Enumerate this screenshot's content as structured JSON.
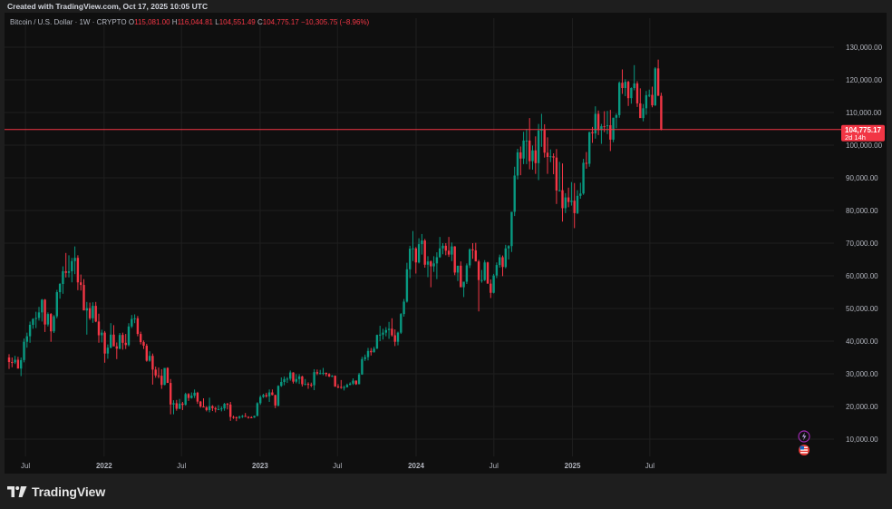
{
  "header": {
    "created": "Created with TradingView.com, Oct 17, 2025 10:05 UTC"
  },
  "legend": {
    "symbol": "Bitcoin / U.S. Dollar · 1W · CRYPTO",
    "o_label": "O",
    "o": "115,081.00",
    "h_label": "H",
    "h": "116,044.81",
    "l_label": "L",
    "l": "104,551.49",
    "c_label": "C",
    "c": "104,775.17",
    "chg": "−10,305.75 (−8.96%)"
  },
  "price_tag": {
    "value": "104,775.17",
    "countdown": "2d 14h"
  },
  "footer": {
    "brand": "TradingView"
  },
  "colors": {
    "up": "#089981",
    "down": "#f23645",
    "bg": "#0f0f0f",
    "grid": "#1f1f1f",
    "axis_text": "#b2b5be"
  },
  "icons": [
    "lightning-icon",
    "us-flag-icon"
  ],
  "chart_data": {
    "type": "candlestick",
    "title": "Bitcoin / U.S. Dollar · 1W · CRYPTO",
    "ylim": [
      3000,
      137000
    ],
    "y_ticks": [
      "10,000.00",
      "20,000.00",
      "30,000.00",
      "40,000.00",
      "50,000.00",
      "60,000.00",
      "70,000.00",
      "80,000.00",
      "90,000.00",
      "100,000.00",
      "110,000.00",
      "120,000.00",
      "130,000.00"
    ],
    "x_ticks": [
      "Jul",
      "2022",
      "Jul",
      "2023",
      "Jul",
      "2024",
      "Jul",
      "2025",
      "Jul"
    ],
    "x_tick_dates": [
      "2021-07-01",
      "2022-01-01",
      "2022-07-01",
      "2023-01-01",
      "2023-07-01",
      "2024-01-01",
      "2024-07-01",
      "2025-01-01",
      "2025-07-01"
    ],
    "current_price": 104775.17,
    "weeks_ohlc": [
      [
        35000,
        36000,
        31500,
        33600
      ],
      [
        33600,
        35000,
        32000,
        33500
      ],
      [
        33500,
        35500,
        33000,
        34300
      ],
      [
        34300,
        35200,
        31800,
        31600
      ],
      [
        31600,
        35000,
        29300,
        34200
      ],
      [
        34200,
        40800,
        33500,
        39800
      ],
      [
        39800,
        42600,
        38000,
        41500
      ],
      [
        41500,
        46000,
        39500,
        45000
      ],
      [
        45000,
        47000,
        43800,
        46800
      ],
      [
        46800,
        49000,
        44000,
        47100
      ],
      [
        47100,
        50500,
        46300,
        48800
      ],
      [
        48800,
        52900,
        46000,
        52700
      ],
      [
        52700,
        52900,
        42800,
        45100
      ],
      [
        45100,
        48800,
        44500,
        48300
      ],
      [
        48300,
        48600,
        39800,
        43000
      ],
      [
        43000,
        48000,
        42500,
        47600
      ],
      [
        47600,
        55700,
        47000,
        55000
      ],
      [
        55000,
        57800,
        53000,
        57500
      ],
      [
        57500,
        62900,
        54500,
        61400
      ],
      [
        61400,
        67000,
        59500,
        60900
      ],
      [
        60900,
        66300,
        59500,
        61400
      ],
      [
        61400,
        65500,
        58000,
        64500
      ],
      [
        64500,
        69000,
        60500,
        65500
      ],
      [
        65500,
        66300,
        55600,
        58000
      ],
      [
        58000,
        60400,
        55500,
        57200
      ],
      [
        57200,
        59000,
        53500,
        49400
      ],
      [
        49400,
        52000,
        42000,
        50100
      ],
      [
        50100,
        51800,
        46500,
        47000
      ],
      [
        47000,
        51900,
        45600,
        50800
      ],
      [
        50800,
        52000,
        45800,
        46000
      ],
      [
        46000,
        48400,
        39500,
        41800
      ],
      [
        41800,
        43500,
        39600,
        42600
      ],
      [
        42600,
        43100,
        33400,
        36200
      ],
      [
        36200,
        39000,
        34600,
        38000
      ],
      [
        38000,
        45500,
        37800,
        42000
      ],
      [
        42000,
        44900,
        39500,
        38400
      ],
      [
        38400,
        39600,
        34500,
        37700
      ],
      [
        37700,
        42500,
        37500,
        41900
      ],
      [
        41900,
        42600,
        37400,
        39500
      ],
      [
        39500,
        42200,
        37600,
        38800
      ],
      [
        38800,
        45500,
        38400,
        44500
      ],
      [
        44500,
        48000,
        44000,
        46800
      ],
      [
        46800,
        48200,
        45500,
        47000
      ],
      [
        47000,
        47700,
        41500,
        42200
      ],
      [
        42200,
        42900,
        39000,
        39700
      ],
      [
        39700,
        40200,
        37600,
        38600
      ],
      [
        38600,
        39200,
        33700,
        34000
      ],
      [
        34000,
        36900,
        33700,
        35500
      ],
      [
        35500,
        36200,
        26700,
        31300
      ],
      [
        31300,
        32200,
        28800,
        29500
      ],
      [
        29500,
        31900,
        28600,
        29400
      ],
      [
        29400,
        31400,
        25400,
        26600
      ],
      [
        26600,
        31500,
        26500,
        31800
      ],
      [
        31800,
        32000,
        28000,
        27200
      ],
      [
        27200,
        28400,
        17600,
        20600
      ],
      [
        20600,
        21900,
        17600,
        21000
      ],
      [
        21000,
        22000,
        18700,
        19300
      ],
      [
        19300,
        22300,
        19200,
        20900
      ],
      [
        20900,
        21400,
        18900,
        20500
      ],
      [
        20500,
        24200,
        20300,
        23800
      ],
      [
        23800,
        24100,
        21700,
        22600
      ],
      [
        22600,
        24300,
        22400,
        23300
      ],
      [
        23300,
        25200,
        22600,
        24200
      ],
      [
        24200,
        24500,
        20800,
        21500
      ],
      [
        21500,
        21700,
        19600,
        20000
      ],
      [
        20000,
        22500,
        19900,
        19700
      ],
      [
        19700,
        20100,
        18500,
        18900
      ],
      [
        18900,
        22700,
        18200,
        20100
      ],
      [
        20100,
        20400,
        18600,
        19500
      ],
      [
        19500,
        19900,
        18200,
        19100
      ],
      [
        19100,
        20400,
        18900,
        19200
      ],
      [
        19200,
        20000,
        18500,
        19400
      ],
      [
        19400,
        21100,
        18700,
        20800
      ],
      [
        20800,
        21100,
        19100,
        20600
      ],
      [
        20600,
        21400,
        15600,
        16800
      ],
      [
        16800,
        17200,
        16200,
        16700
      ],
      [
        16700,
        16900,
        15500,
        16500
      ],
      [
        16500,
        17200,
        16200,
        16900
      ],
      [
        16900,
        17400,
        16500,
        17100
      ],
      [
        17100,
        18000,
        16800,
        16800
      ],
      [
        16800,
        17000,
        16300,
        16700
      ],
      [
        16700,
        17000,
        16400,
        16600
      ],
      [
        16600,
        17200,
        16500,
        17100
      ],
      [
        17100,
        21300,
        17000,
        21000
      ],
      [
        21000,
        23400,
        20500,
        22900
      ],
      [
        22900,
        23900,
        22600,
        23500
      ],
      [
        23500,
        24200,
        22700,
        23100
      ],
      [
        23100,
        25200,
        21400,
        24300
      ],
      [
        24300,
        25200,
        23400,
        23500
      ],
      [
        23500,
        23600,
        19500,
        20300
      ],
      [
        20300,
        26500,
        20000,
        26300
      ],
      [
        26300,
        28900,
        26000,
        27500
      ],
      [
        27500,
        29200,
        26500,
        28400
      ],
      [
        28400,
        29000,
        27200,
        28500
      ],
      [
        28500,
        31000,
        27900,
        30400
      ],
      [
        30400,
        30500,
        27000,
        27600
      ],
      [
        27600,
        29900,
        27100,
        28400
      ],
      [
        28400,
        29900,
        26900,
        29200
      ],
      [
        29200,
        29400,
        26100,
        26800
      ],
      [
        26800,
        28400,
        26500,
        26900
      ],
      [
        26900,
        27400,
        25400,
        26700
      ],
      [
        26700,
        27300,
        25900,
        26500
      ],
      [
        26500,
        31400,
        25000,
        30500
      ],
      [
        30500,
        31300,
        29600,
        30100
      ],
      [
        30100,
        31200,
        29800,
        30200
      ],
      [
        30200,
        31800,
        29600,
        30300
      ],
      [
        30300,
        30400,
        29200,
        29900
      ],
      [
        29900,
        30200,
        29000,
        29200
      ],
      [
        29200,
        29600,
        29000,
        29400
      ],
      [
        29400,
        29500,
        26000,
        26100
      ],
      [
        26100,
        26800,
        25600,
        26000
      ],
      [
        26000,
        28100,
        25400,
        25800
      ],
      [
        25800,
        26400,
        24900,
        25900
      ],
      [
        25900,
        27000,
        25800,
        26600
      ],
      [
        26600,
        27400,
        26500,
        27000
      ],
      [
        27000,
        28600,
        26600,
        27900
      ],
      [
        27900,
        28000,
        26600,
        26800
      ],
      [
        26800,
        30300,
        26800,
        29800
      ],
      [
        29800,
        35200,
        29700,
        34500
      ],
      [
        34500,
        35900,
        33900,
        35100
      ],
      [
        35100,
        37900,
        34100,
        37000
      ],
      [
        37000,
        37900,
        35600,
        36600
      ],
      [
        36600,
        38300,
        36500,
        37700
      ],
      [
        37700,
        42000,
        37600,
        41900
      ],
      [
        41900,
        44700,
        40000,
        42000
      ],
      [
        42000,
        43800,
        40500,
        42600
      ],
      [
        42600,
        44300,
        41500,
        43400
      ],
      [
        43400,
        45900,
        40700,
        43800
      ],
      [
        43800,
        47000,
        41400,
        41800
      ],
      [
        41800,
        43600,
        38500,
        39800
      ],
      [
        39800,
        42900,
        38700,
        42600
      ],
      [
        42600,
        48600,
        42200,
        48300
      ],
      [
        48300,
        52900,
        47500,
        52100
      ],
      [
        52100,
        64000,
        51800,
        62000
      ],
      [
        62000,
        69200,
        59300,
        68300
      ],
      [
        68300,
        73700,
        64500,
        68400
      ],
      [
        68400,
        68800,
        60700,
        64100
      ],
      [
        64100,
        71500,
        63800,
        69700
      ],
      [
        69700,
        72800,
        66500,
        70800
      ],
      [
        70800,
        71300,
        62500,
        63400
      ],
      [
        63400,
        66000,
        59600,
        64400
      ],
      [
        64400,
        64700,
        56500,
        62900
      ],
      [
        62900,
        66000,
        61200,
        63800
      ],
      [
        63800,
        67200,
        59000,
        65700
      ],
      [
        65700,
        71900,
        65500,
        68400
      ],
      [
        68400,
        70000,
        66600,
        69200
      ],
      [
        69200,
        70000,
        66300,
        67700
      ],
      [
        67700,
        71900,
        65800,
        66500
      ],
      [
        66500,
        70200,
        64500,
        69000
      ],
      [
        69000,
        69100,
        60200,
        61000
      ],
      [
        61000,
        62200,
        58400,
        63100
      ],
      [
        63100,
        64400,
        59700,
        56500
      ],
      [
        56500,
        57900,
        53500,
        58200
      ],
      [
        58200,
        63800,
        57500,
        63200
      ],
      [
        63200,
        68400,
        62400,
        68100
      ],
      [
        68100,
        70000,
        65200,
        67800
      ],
      [
        67800,
        70100,
        65000,
        64400
      ],
      [
        64400,
        64900,
        49100,
        58700
      ],
      [
        58700,
        61800,
        57900,
        58700
      ],
      [
        58700,
        64800,
        58400,
        64100
      ],
      [
        64100,
        64300,
        57600,
        57600
      ],
      [
        57600,
        58900,
        53200,
        54800
      ],
      [
        54800,
        60600,
        54600,
        60100
      ],
      [
        60100,
        64100,
        59300,
        63300
      ],
      [
        63300,
        66500,
        62500,
        65700
      ],
      [
        65700,
        66200,
        59900,
        62700
      ],
      [
        62700,
        69500,
        62300,
        68400
      ],
      [
        68400,
        69400,
        65000,
        69100
      ],
      [
        69100,
        73600,
        67300,
        79600
      ],
      [
        79600,
        93400,
        78300,
        90700
      ],
      [
        90700,
        98900,
        89500,
        97800
      ],
      [
        97800,
        99600,
        90800,
        95900
      ],
      [
        95900,
        104100,
        94200,
        101400
      ],
      [
        101400,
        105000,
        94200,
        101400
      ],
      [
        101400,
        108300,
        92600,
        95100
      ],
      [
        95100,
        99900,
        92500,
        98400
      ],
      [
        98400,
        102700,
        91200,
        94500
      ],
      [
        94500,
        106500,
        89300,
        104500
      ],
      [
        104500,
        109600,
        99500,
        104700
      ],
      [
        104700,
        106400,
        96200,
        97700
      ],
      [
        97700,
        102400,
        91200,
        96400
      ],
      [
        96400,
        98700,
        94800,
        96600
      ],
      [
        96600,
        97500,
        91100,
        96200
      ],
      [
        96200,
        98800,
        82000,
        86100
      ],
      [
        86100,
        94900,
        85800,
        86200
      ],
      [
        86200,
        94400,
        76600,
        80700
      ],
      [
        80700,
        85300,
        79200,
        84000
      ],
      [
        84000,
        87000,
        81000,
        82600
      ],
      [
        82600,
        88700,
        81500,
        83000
      ],
      [
        83000,
        88400,
        74600,
        79200
      ],
      [
        79200,
        86200,
        78900,
        84500
      ],
      [
        84500,
        88500,
        83600,
        85200
      ],
      [
        85200,
        95800,
        84800,
        94600
      ],
      [
        94600,
        97900,
        92800,
        94300
      ],
      [
        94300,
        104100,
        93400,
        104000
      ],
      [
        104000,
        105600,
        100700,
        103600
      ],
      [
        103600,
        111900,
        102000,
        109600
      ],
      [
        109600,
        110600,
        103100,
        104600
      ],
      [
        104600,
        106500,
        100400,
        105800
      ],
      [
        105800,
        110400,
        104000,
        105600
      ],
      [
        105800,
        110500,
        103400,
        106100
      ],
      [
        106100,
        110800,
        98200,
        101700
      ],
      [
        101700,
        108400,
        100900,
        108400
      ],
      [
        108400,
        109700,
        105200,
        109200
      ],
      [
        109200,
        119500,
        108400,
        119100
      ],
      [
        119100,
        123200,
        115700,
        117500
      ],
      [
        117500,
        120200,
        115000,
        119400
      ],
      [
        119400,
        119700,
        112000,
        114400
      ],
      [
        114400,
        117700,
        112700,
        117500
      ],
      [
        117500,
        124500,
        116800,
        118900
      ],
      [
        118900,
        119600,
        111700,
        112800
      ],
      [
        112800,
        117400,
        110600,
        108300
      ],
      [
        108300,
        112600,
        107300,
        111300
      ],
      [
        111300,
        116600,
        109300,
        115300
      ],
      [
        115300,
        117000,
        114700,
        115400
      ],
      [
        115400,
        117900,
        111600,
        112200
      ],
      [
        112200,
        123900,
        112000,
        123500
      ],
      [
        123500,
        126200,
        120600,
        115100
      ],
      [
        115100,
        116044.81,
        104551.49,
        104775.17
      ]
    ]
  }
}
